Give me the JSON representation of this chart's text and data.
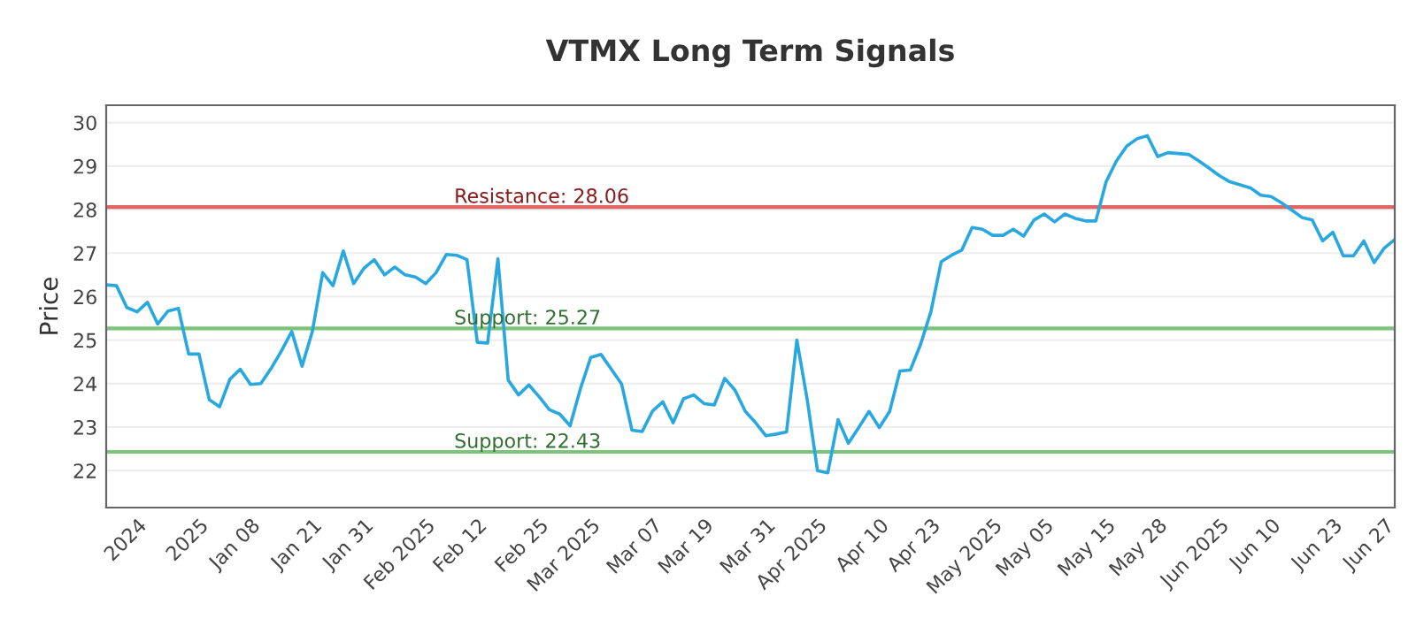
{
  "chart_data": {
    "type": "line",
    "title": "VTMX Long Term Signals",
    "ylabel": "Price",
    "categories": [
      null,
      null,
      null,
      "2024",
      null,
      null,
      null,
      null,
      null,
      "2025",
      null,
      null,
      null,
      null,
      "Jan 08",
      null,
      null,
      null,
      null,
      null,
      "Jan 21",
      null,
      null,
      null,
      null,
      "Jan 31",
      null,
      null,
      null,
      null,
      null,
      "Feb 2025",
      null,
      null,
      null,
      null,
      "Feb 12",
      null,
      null,
      null,
      null,
      null,
      "Feb 25",
      null,
      null,
      null,
      null,
      "Mar 2025",
      null,
      null,
      null,
      null,
      null,
      "Mar 07",
      null,
      null,
      null,
      null,
      "Mar 19",
      null,
      null,
      null,
      null,
      null,
      "Mar 31",
      null,
      null,
      null,
      null,
      "Apr 2025",
      null,
      null,
      null,
      null,
      null,
      "Apr 10",
      null,
      null,
      null,
      null,
      "Apr 23",
      null,
      null,
      null,
      null,
      null,
      "May 2025",
      null,
      null,
      null,
      null,
      "May 05",
      null,
      null,
      null,
      null,
      null,
      "May 15",
      null,
      null,
      null,
      null,
      "May 28",
      null,
      null,
      null,
      null,
      null,
      "Jun 2025",
      null,
      null,
      null,
      null,
      "Jun 10",
      null,
      null,
      null,
      null,
      null,
      "Jun 23",
      null,
      null,
      null,
      null,
      "Jun 27",
      null
    ],
    "series": [
      {
        "color": "#29a8e0",
        "values": [
          26.27,
          26.25,
          25.75,
          25.65,
          25.87,
          25.37,
          25.67,
          25.73,
          24.68,
          24.68,
          23.63,
          23.47,
          24.1,
          24.33,
          23.98,
          24.0,
          24.35,
          24.75,
          25.2,
          24.4,
          25.2,
          26.55,
          26.25,
          27.05,
          26.3,
          26.65,
          26.85,
          26.5,
          26.68,
          26.5,
          26.45,
          26.3,
          26.55,
          26.97,
          26.95,
          26.85,
          24.95,
          24.93,
          26.87,
          24.08,
          23.74,
          23.97,
          23.7,
          23.4,
          23.3,
          23.03,
          23.88,
          24.6,
          24.67,
          24.33,
          23.99,
          22.93,
          22.9,
          23.37,
          23.58,
          23.1,
          23.65,
          23.74,
          23.54,
          23.51,
          24.12,
          23.85,
          23.36,
          23.1,
          22.8,
          22.84,
          22.89,
          25.0,
          23.64,
          22.0,
          21.95,
          23.17,
          22.63,
          22.99,
          23.36,
          22.99,
          23.36,
          24.29,
          24.31,
          24.9,
          25.65,
          26.8,
          26.95,
          27.07,
          27.59,
          27.55,
          27.41,
          27.41,
          27.55,
          27.39,
          27.76,
          27.9,
          27.72,
          27.9,
          27.8,
          27.74,
          27.74,
          28.64,
          29.12,
          29.46,
          29.63,
          29.7,
          29.22,
          29.31,
          29.29,
          29.27,
          29.12,
          28.95,
          28.78,
          28.64,
          28.57,
          28.5,
          28.33,
          28.3,
          28.16,
          27.99,
          27.82,
          27.76,
          27.28,
          27.48,
          26.94,
          26.94,
          27.28,
          26.78,
          27.12,
          27.31
        ]
      }
    ],
    "ylim": [
      21.15,
      30.4
    ],
    "yticks": [
      22,
      23,
      24,
      25,
      26,
      27,
      28,
      29,
      30
    ],
    "grid": "y",
    "marker": "none",
    "line_style": "solid",
    "ref_lines": [
      {
        "axis": "y",
        "value": 28.06,
        "label": "Resistance: 28.06",
        "color": "#e06666"
      },
      {
        "axis": "y",
        "value": 25.27,
        "label": "Support: 25.27",
        "color": "#7cc47c"
      },
      {
        "axis": "y",
        "value": 22.43,
        "label": "Support: 22.43",
        "color": "#7cc47c"
      }
    ]
  }
}
